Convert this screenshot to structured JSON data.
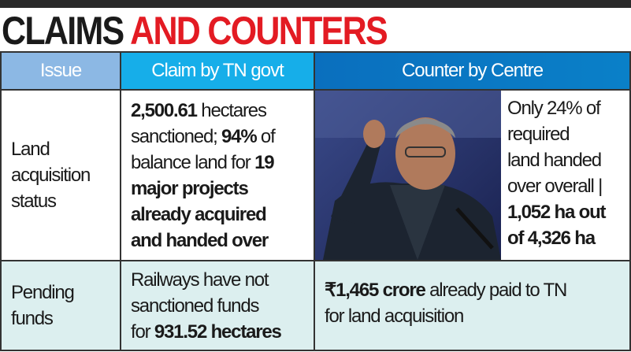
{
  "title": {
    "part1": "CLAIMS",
    "part2": "AND COUNTERS"
  },
  "columns": [
    "Issue",
    "Claim by TN govt",
    "Counter by Centre"
  ],
  "rows": [
    {
      "issue": [
        "Land",
        "acquisition",
        "status"
      ],
      "claim": {
        "b1": "2,500.61",
        "t1": " hectares",
        "t2": "sanctioned; ",
        "b2": "94%",
        "t3": " of",
        "t4": "balance land for ",
        "b3": "19",
        "b4": "major projects",
        "b5": "already acquired",
        "b6": "and handed over"
      },
      "counter": {
        "t1": "Only 24% of",
        "t2": "required",
        "t3": "land handed",
        "t4": "over overall |",
        "b1": "1,052 ha out",
        "b2": "of 4,326 ha"
      }
    },
    {
      "issue": [
        "Pending",
        "funds"
      ],
      "claim": {
        "t1": "Railways have not",
        "t2": "sanctioned funds",
        "t3": "for ",
        "b1": "931.52 hectares"
      },
      "counter": {
        "b1": "₹1,465 crore",
        "t1": " already paid to TN",
        "t2": "for land acquisition"
      }
    }
  ],
  "colors": {
    "title_red": "#e31b23",
    "header_issue": "#8cb8e4",
    "header_claim": "#16aee9",
    "header_counter": "#0a78c4",
    "row2_bg": "#dcefef"
  }
}
